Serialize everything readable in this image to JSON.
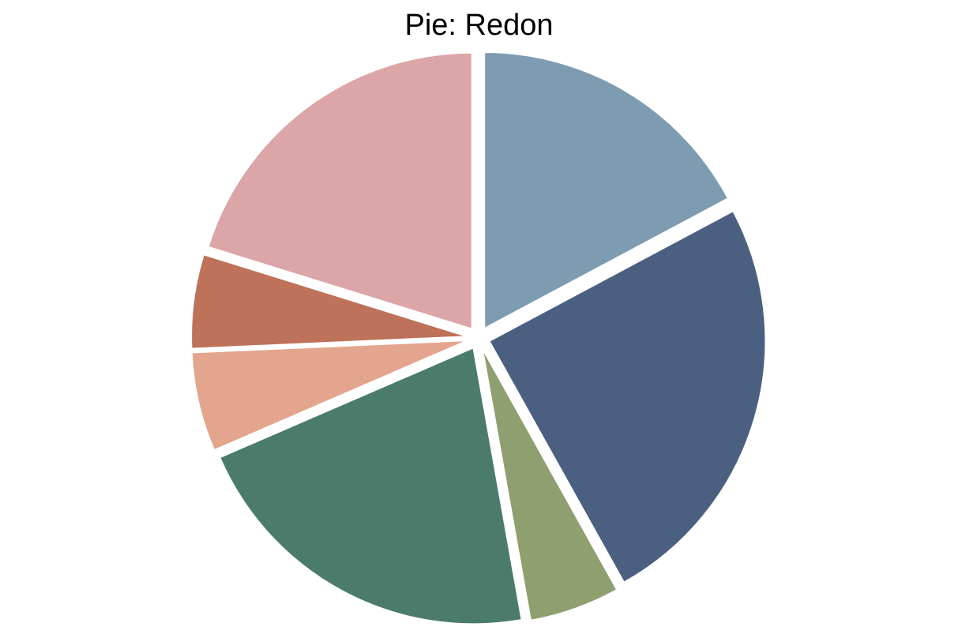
{
  "chart_data": {
    "type": "pie",
    "title": "Pie: Redon",
    "start_angle_deg": 90,
    "direction": "clockwise",
    "exploded": true,
    "slices": [
      {
        "value": 17.2,
        "color": "#7d9cb1"
      },
      {
        "value": 24.7,
        "color": "#4b6081"
      },
      {
        "value": 5.3,
        "color": "#909f6f"
      },
      {
        "value": 21.3,
        "color": "#4b7b6b"
      },
      {
        "value": 5.8,
        "color": "#e3a58e"
      },
      {
        "value": 5.5,
        "color": "#bd7259"
      },
      {
        "value": 20.2,
        "color": "#dca5a7"
      }
    ]
  }
}
